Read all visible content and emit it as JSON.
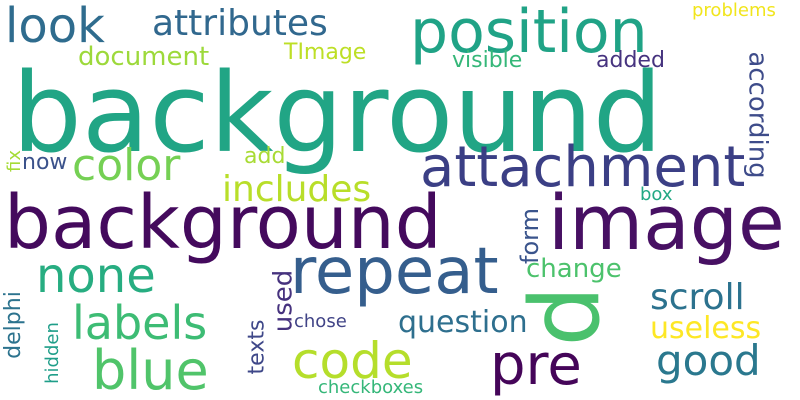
{
  "words": [
    {
      "text": "background",
      "color": "#21a585"
    },
    {
      "text": "background",
      "color": "#440a5d"
    },
    {
      "text": "image",
      "color": "#471063"
    },
    {
      "text": "attachment",
      "color": "#3b3f85"
    },
    {
      "text": "position",
      "color": "#20a386"
    },
    {
      "text": "repeat",
      "color": "#355e8d"
    },
    {
      "text": "p",
      "color": "#4ac16d"
    },
    {
      "text": "attributes",
      "color": "#31688e"
    },
    {
      "text": "look",
      "color": "#2f6c8e"
    },
    {
      "text": "color",
      "color": "#75d054"
    },
    {
      "text": "none",
      "color": "#27ad81"
    },
    {
      "text": "labels",
      "color": "#3dbc74"
    },
    {
      "text": "blue",
      "color": "#50c46a"
    },
    {
      "text": "code",
      "color": "#b5de2b"
    },
    {
      "text": "pre",
      "color": "#450559"
    },
    {
      "text": "good",
      "color": "#2a788e"
    },
    {
      "text": "scroll",
      "color": "#2c728e"
    },
    {
      "text": "includes",
      "color": "#b8de29"
    },
    {
      "text": "question",
      "color": "#2e6f8e"
    },
    {
      "text": "useless",
      "color": "#fde725"
    },
    {
      "text": "change",
      "color": "#4cc26c"
    },
    {
      "text": "document",
      "color": "#9dd93b"
    },
    {
      "text": "TImage",
      "color": "#bddf26"
    },
    {
      "text": "visible",
      "color": "#35b779"
    },
    {
      "text": "added",
      "color": "#46337f"
    },
    {
      "text": "problems",
      "color": "#f1e51d"
    },
    {
      "text": "according",
      "color": "#3e4c8a"
    },
    {
      "text": "now",
      "color": "#3b528b"
    },
    {
      "text": "add",
      "color": "#a8db34"
    },
    {
      "text": "box",
      "color": "#22a884"
    },
    {
      "text": "form",
      "color": "#3a548c"
    },
    {
      "text": "used",
      "color": "#46327e"
    },
    {
      "text": "texts",
      "color": "#3f4889"
    },
    {
      "text": "chose",
      "color": "#414487"
    },
    {
      "text": "checkboxes",
      "color": "#35b779"
    },
    {
      "text": "hidden",
      "color": "#1f9e89"
    },
    {
      "text": "delphi",
      "color": "#2c738e"
    },
    {
      "text": "fix",
      "color": "#a5db36"
    }
  ]
}
